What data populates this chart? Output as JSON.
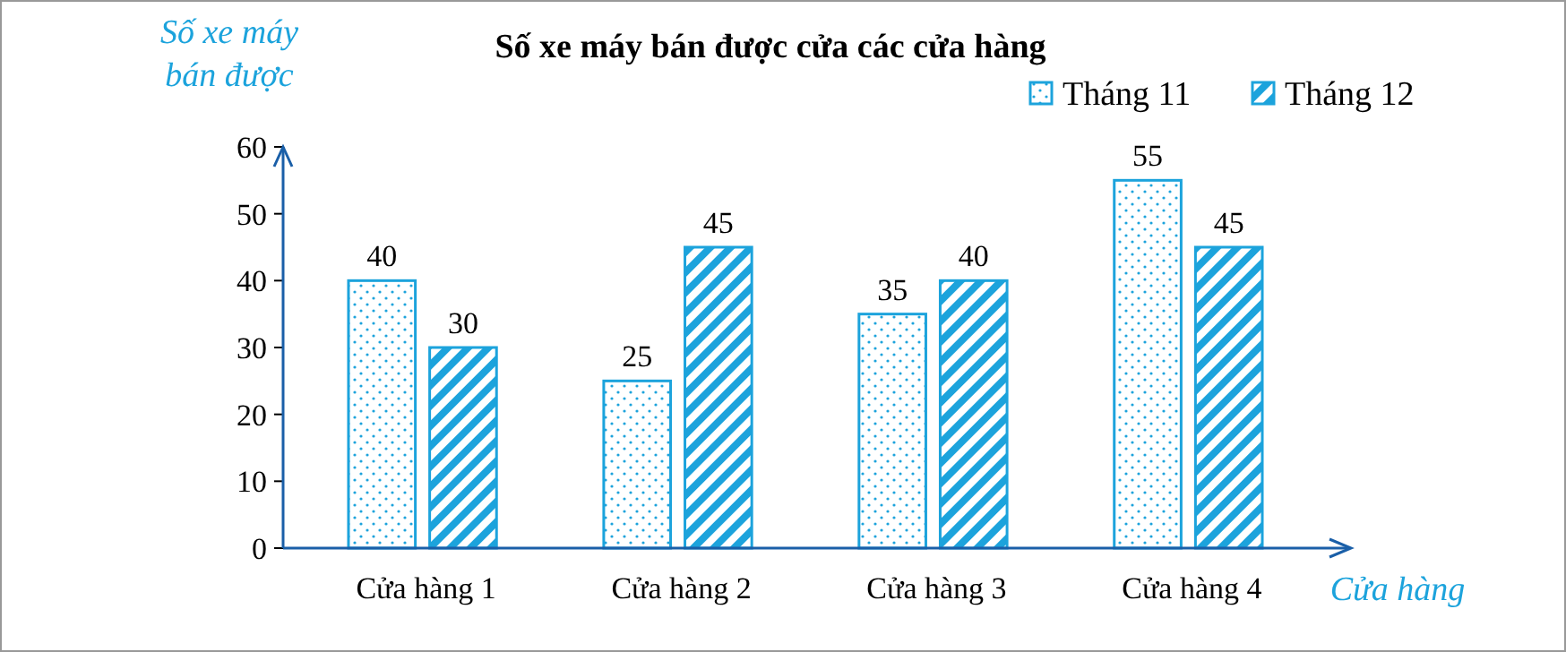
{
  "chart_data": {
    "type": "bar",
    "title": "Số xe máy bán được cửa các cửa hàng",
    "xlabel": "Cửa hàng",
    "ylabel": "Số xe máy bán được",
    "categories": [
      "Cửa hàng 1",
      "Cửa hàng 2",
      "Cửa hàng 3",
      "Cửa hàng 4"
    ],
    "series": [
      {
        "name": "Tháng 11",
        "color": "#1ca3dc",
        "values": [
          40,
          25,
          35,
          55
        ]
      },
      {
        "name": "Tháng 12",
        "color": "#1ca3dc",
        "values": [
          30,
          45,
          40,
          45
        ]
      }
    ],
    "ylim": [
      0,
      60
    ],
    "yticks": [
      0,
      10,
      20,
      30,
      40,
      50,
      60
    ],
    "data_labels": true,
    "legend": "top right",
    "grid": false
  }
}
